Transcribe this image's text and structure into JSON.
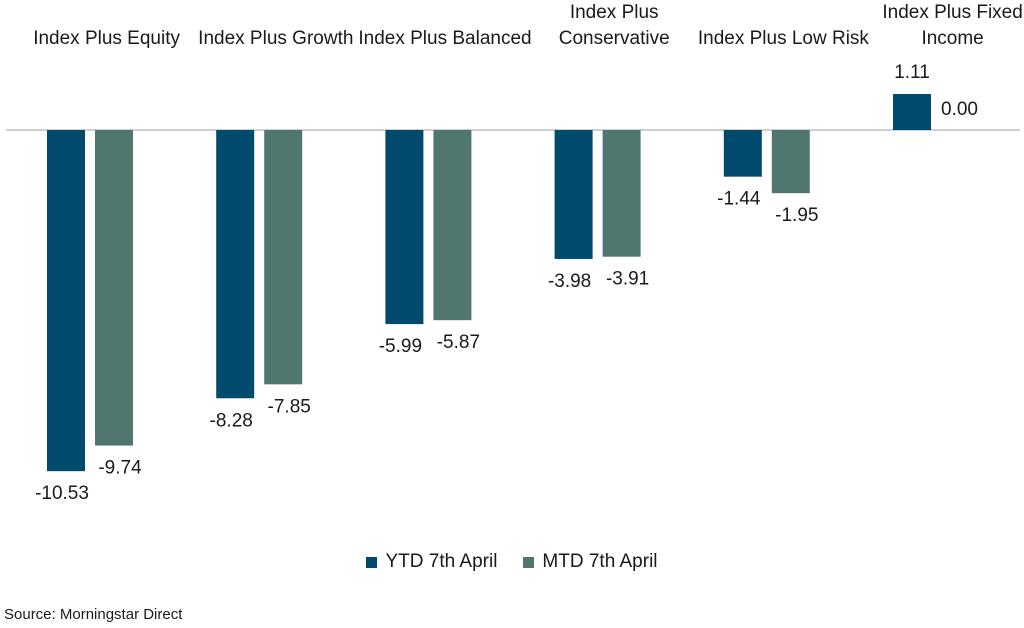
{
  "chart_data": {
    "type": "bar",
    "categories": [
      "Index Plus Equity",
      "Index Plus Growth",
      "Index Plus Balanced",
      "Index Plus Conservative",
      "Index Plus Low Risk",
      "Index Plus Fixed Income"
    ],
    "series": [
      {
        "name": "YTD 7th April",
        "color": "#004a6e",
        "values": [
          -10.53,
          -8.28,
          -5.99,
          -3.98,
          -1.44,
          1.11
        ]
      },
      {
        "name": "MTD 7th April",
        "color": "#4f7770",
        "values": [
          -9.74,
          -7.85,
          -5.87,
          -3.91,
          -1.95,
          0.0
        ]
      }
    ],
    "title": "",
    "xlabel": "",
    "ylabel": "",
    "legend_position": "bottom",
    "grid": false
  },
  "source": "Source: Morningstar Direct"
}
